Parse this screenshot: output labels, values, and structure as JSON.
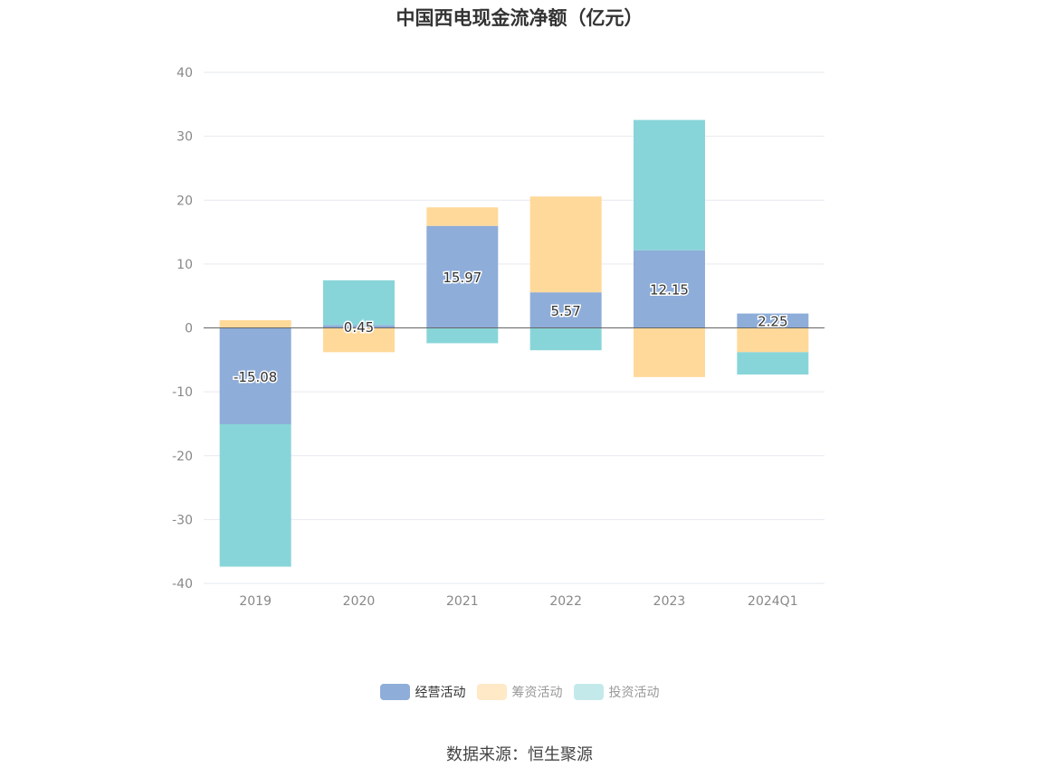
{
  "title": "中国西电现金流净额（亿元）",
  "source": "数据来源：恒生聚源",
  "colors": {
    "operating": "#8eadd9",
    "financing": "#ffd99a",
    "investing": "#88d5d9",
    "grid": "#e6e9ef",
    "axis": "#666666",
    "tick_text": "#888888"
  },
  "legend": [
    {
      "label": "经营活动",
      "color": "#8eadd9",
      "active": true
    },
    {
      "label": "筹资活动",
      "color": "#ffe9c7",
      "active": false
    },
    {
      "label": "投资活动",
      "color": "#c4e9eb",
      "active": false
    }
  ],
  "chart_data": {
    "type": "bar",
    "stacked": true,
    "title": "中国西电现金流净额（亿元）",
    "categories": [
      "2019",
      "2020",
      "2021",
      "2022",
      "2023",
      "2024Q1"
    ],
    "ylim": [
      -40,
      40
    ],
    "yticks": [
      40,
      30,
      20,
      10,
      0,
      -10,
      -20,
      -30,
      -40
    ],
    "grid": true,
    "legend_position": "bottom",
    "series": [
      {
        "name": "经营活动",
        "values": [
          -15.08,
          0.45,
          15.97,
          5.57,
          12.15,
          2.25
        ],
        "labels": [
          "-15.08",
          "0.45",
          "15.97",
          "5.57",
          "12.15",
          "2.25"
        ]
      },
      {
        "name": "筹资活动",
        "values": [
          1.2,
          -3.8,
          2.9,
          15.0,
          -7.7,
          -3.8
        ]
      },
      {
        "name": "投资活动",
        "values": [
          -22.3,
          7.0,
          -2.4,
          -3.5,
          20.4,
          -3.5
        ]
      }
    ]
  }
}
